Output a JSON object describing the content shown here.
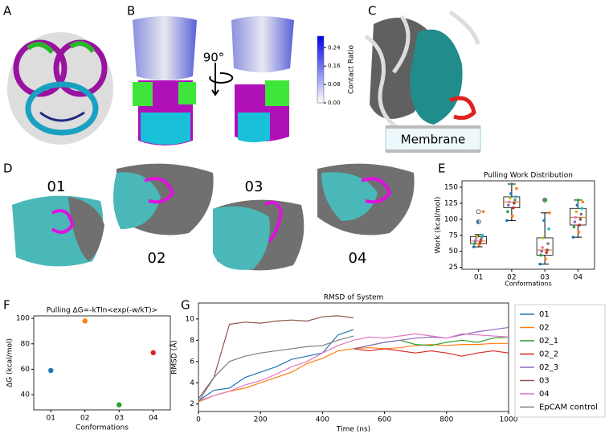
{
  "figure": {
    "panel_labels": [
      "A",
      "B",
      "C",
      "D",
      "E",
      "F",
      "G"
    ],
    "rotation_label": "90°",
    "membrane_label": "Membrane",
    "conformation_labels": [
      "01",
      "02",
      "03",
      "04"
    ],
    "colorbar": {
      "label": "Contact Ratio",
      "lim": [
        0,
        0.29
      ],
      "colors": [
        "#ffffff",
        "#0000ee"
      ],
      "ticks": [
        {
          "value": 0,
          "label": "0.00"
        },
        0.08,
        0.16,
        0.24
      ]
    }
  },
  "chart_data": [
    {
      "type": "box",
      "title": "Pulling Work Distribution",
      "x_label": "Conformations",
      "y_label": "Work (kcal/mol)",
      "categories": [
        "01",
        "02",
        "03",
        "04"
      ],
      "boxes": [
        {
          "whisker_low": 57,
          "q1": 62,
          "median": 66,
          "q3": 73,
          "whisker_high": 76,
          "outliers": [
            96,
            112
          ]
        },
        {
          "whisker_low": 98,
          "q1": 118,
          "median": 127,
          "q3": 135,
          "whisker_high": 155,
          "outliers": []
        },
        {
          "whisker_low": 30,
          "q1": 44,
          "median": 52,
          "q3": 71,
          "whisker_high": 110,
          "outliers": [
            130
          ]
        },
        {
          "whisker_low": 72,
          "q1": 91,
          "median": 103,
          "q3": 117,
          "whisker_high": 130,
          "outliers": []
        }
      ],
      "points": [
        [
          57,
          60,
          62,
          64,
          66,
          68,
          70,
          72,
          73,
          75,
          96,
          112
        ],
        [
          98,
          105,
          112,
          118,
          122,
          125,
          127,
          130,
          133,
          135,
          140,
          148,
          155
        ],
        [
          30,
          38,
          44,
          48,
          50,
          52,
          56,
          62,
          71,
          85,
          98,
          110,
          130
        ],
        [
          72,
          80,
          88,
          91,
          96,
          100,
          103,
          108,
          112,
          117,
          122,
          127,
          130
        ]
      ],
      "point_colors": [
        "#1f77b4",
        "#ff7f0e",
        "#2ca02c",
        "#d62728",
        "#9467bd",
        "#8c564b",
        "#e377c2",
        "#7f7f7f",
        "#bcbd22",
        "#17becf"
      ],
      "ylim": [
        22,
        160
      ],
      "yticks": [
        25,
        50,
        75,
        100,
        125,
        150
      ]
    },
    {
      "type": "scatter",
      "title": "Pulling ΔG=-kTln<exp(-w/kT)>",
      "x_label": "Conformations",
      "y_label": "ΔG (kcal/mol)",
      "categories": [
        "01",
        "02",
        "03",
        "04"
      ],
      "values": [
        59,
        98,
        32,
        73
      ],
      "colors": [
        "#1f77b4",
        "#ff7f0e",
        "#2ca02c",
        "#d62728"
      ],
      "ylim": [
        28,
        102
      ],
      "yticks": [
        40,
        60,
        80,
        100
      ]
    },
    {
      "type": "line",
      "title": "RMSD of System",
      "x_label": "Time (ns)",
      "y_label": "RMSD (Å)",
      "legend": "outside right",
      "x": [
        0,
        50,
        100,
        150,
        200,
        250,
        300,
        350,
        400,
        450,
        500,
        550,
        600,
        650,
        700,
        750,
        800,
        850,
        900,
        950,
        1000
      ],
      "series": [
        {
          "name": "01",
          "color": "#1f77b4",
          "values": [
            2.3,
            3.3,
            3.5,
            4.5,
            5,
            5.5,
            6.2,
            6.5,
            6.8,
            8.5,
            9,
            null,
            null,
            null,
            null,
            null,
            null,
            null,
            null,
            null,
            null
          ]
        },
        {
          "name": "02",
          "color": "#ff7f0e",
          "values": [
            2.2,
            2.8,
            3.2,
            3.5,
            4,
            4.5,
            5,
            5.8,
            6.3,
            7,
            7.2,
            7.3,
            7.2,
            7.3,
            7.5,
            7.6,
            7.5,
            7.6,
            7.6,
            7.7,
            7.7
          ]
        },
        {
          "name": "02_1",
          "color": "#2ca02c",
          "values": [
            null,
            null,
            null,
            null,
            null,
            null,
            null,
            null,
            null,
            null,
            7.2,
            7.5,
            7.8,
            8,
            7.6,
            7.5,
            7.8,
            8,
            7.8,
            8.2,
            8.3
          ]
        },
        {
          "name": "02_2",
          "color": "#d62728",
          "values": [
            null,
            null,
            null,
            null,
            null,
            null,
            null,
            null,
            null,
            null,
            7.2,
            7,
            7.2,
            7,
            6.8,
            7,
            6.8,
            6.5,
            6.8,
            7,
            6.8
          ]
        },
        {
          "name": "02_3",
          "color": "#9467bd",
          "values": [
            null,
            null,
            null,
            null,
            null,
            null,
            null,
            null,
            null,
            null,
            7.2,
            7.5,
            7.8,
            8,
            8.2,
            8.3,
            8.2,
            8.5,
            8.8,
            9,
            9.2
          ]
        },
        {
          "name": "03",
          "color": "#8c564b",
          "values": [
            2.5,
            4.5,
            9.5,
            9.7,
            9.6,
            9.8,
            9.9,
            9.8,
            10.2,
            10.3,
            10.1,
            null,
            null,
            null,
            null,
            null,
            null,
            null,
            null,
            null,
            null
          ]
        },
        {
          "name": "04",
          "color": "#e377c2",
          "values": [
            2.3,
            2.8,
            3.2,
            3.8,
            4.2,
            4.8,
            5.5,
            6,
            6.8,
            7.5,
            8,
            8.3,
            8.2,
            8.4,
            8.6,
            8.4,
            8.2,
            8.6,
            8.5,
            8.4,
            8.3
          ]
        },
        {
          "name": "EpCAM control",
          "color": "#7f7f7f",
          "values": [
            2.2,
            4.5,
            6,
            6.5,
            6.8,
            7,
            7.2,
            7.4,
            7.5,
            8,
            8.4,
            null,
            null,
            null,
            null,
            null,
            null,
            null,
            null,
            null,
            null
          ]
        }
      ],
      "xlim": [
        0,
        1000
      ],
      "xticks": [
        0,
        200,
        400,
        600,
        800,
        1000
      ],
      "ylim": [
        1.3,
        11.5
      ],
      "yticks": [
        2,
        4,
        6,
        8,
        10
      ]
    }
  ]
}
